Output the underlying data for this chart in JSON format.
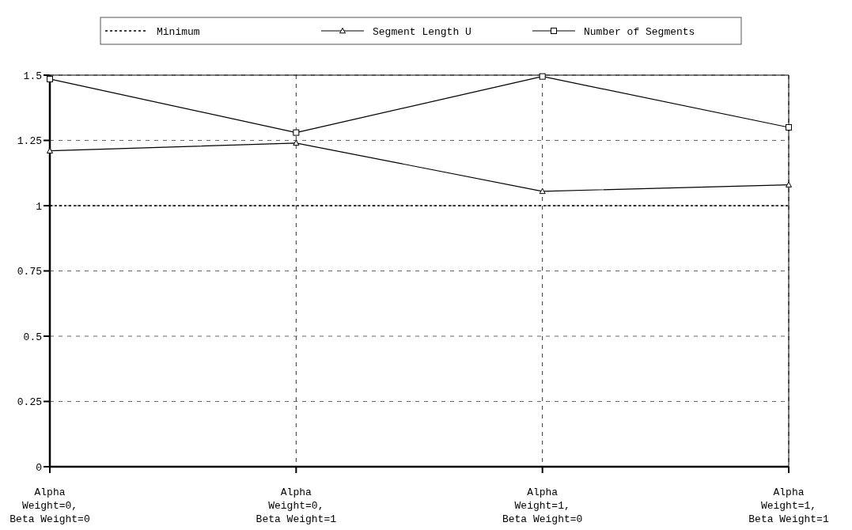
{
  "chart_data": {
    "type": "line",
    "categories": [
      "Alpha\nWeight=0,\nBeta Weight=0",
      "Alpha\nWeight=0,\nBeta Weight=1",
      "Alpha\nWeight=1,\nBeta Weight=0",
      "Alpha\nWeight=1,\nBeta Weight=1"
    ],
    "series": [
      {
        "name": "Minimum",
        "color": "#000000",
        "values": [
          1,
          1,
          1,
          1
        ],
        "marker": "none",
        "line_style": "dotted"
      },
      {
        "name": "Segment Length U",
        "color": "#000000",
        "values": [
          1.21,
          1.24,
          1.055,
          1.08
        ],
        "marker": "triangle",
        "line_style": "solid"
      },
      {
        "name": "Number of Segments",
        "color": "#000000",
        "values": [
          1.485,
          1.28,
          1.495,
          1.3
        ],
        "marker": "square",
        "line_style": "solid"
      }
    ],
    "ylim": [
      0,
      1.5
    ],
    "yticks": [
      0,
      0.25,
      0.5,
      0.75,
      1,
      1.25,
      1.5
    ],
    "grid": true,
    "legend": "top"
  }
}
